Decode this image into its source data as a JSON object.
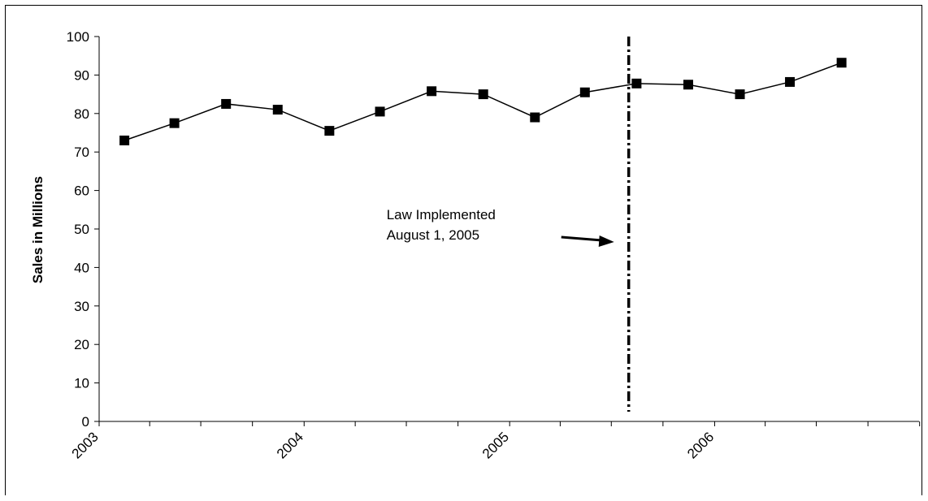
{
  "chart_data": {
    "type": "line",
    "title": "",
    "xlabel": "",
    "ylabel": "Sales in Millions",
    "ylim": [
      0,
      100
    ],
    "y_ticks": [
      0,
      10,
      20,
      30,
      40,
      50,
      60,
      70,
      80,
      90,
      100
    ],
    "x_tick_labels": [
      "2003",
      "2004",
      "2005",
      "2006"
    ],
    "x_range": [
      "2003-01-01",
      "2006-12-31"
    ],
    "grid": false,
    "legend": "none",
    "series": [
      {
        "marker": "square",
        "color": "#000000",
        "x": [
          "2003-02",
          "2003-05",
          "2003-08",
          "2003-11",
          "2004-02",
          "2004-05",
          "2004-08",
          "2004-11",
          "2005-02",
          "2005-05",
          "2005-08",
          "2005-11",
          "2006-02",
          "2006-05",
          "2006-08"
        ],
        "values": [
          73,
          77.5,
          82.5,
          81,
          75.5,
          80.5,
          85.8,
          85,
          79,
          85.5,
          87.8,
          87.5,
          85,
          88.2,
          93.2
        ]
      }
    ],
    "annotations": [
      {
        "text_lines": [
          "Law Implemented",
          "August 1, 2005"
        ],
        "reference_date": "2005-08-01",
        "line_style": "dash-dot",
        "arrow": true
      }
    ]
  }
}
